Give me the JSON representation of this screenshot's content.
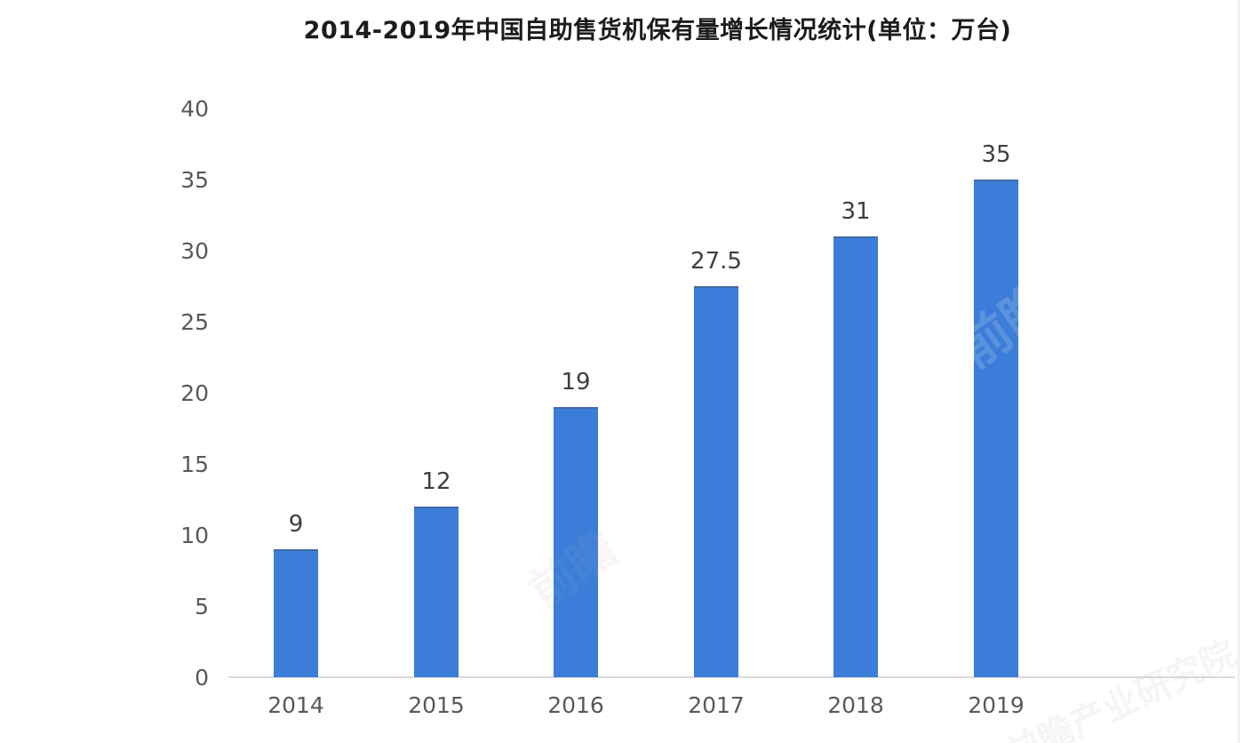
{
  "title": "2014-2019年中国自助售货机保有量增长情况统计(单位：万台)",
  "chart_data": {
    "type": "bar",
    "title": "2014-2019年中国自助售货机保有量增长情况统计(单位：万台)",
    "categories": [
      "2014",
      "2015",
      "2016",
      "2017",
      "2018",
      "2019"
    ],
    "values": [
      9,
      12,
      19,
      27.5,
      31,
      35
    ],
    "value_labels": [
      "9",
      "12",
      "19",
      "27.5",
      "31",
      "35"
    ],
    "xlabel": "",
    "ylabel": "",
    "ylim": [
      0,
      40
    ],
    "yticks": [
      0,
      5,
      10,
      15,
      20,
      25,
      30,
      35,
      40
    ],
    "grid": false,
    "legend": null,
    "bar_color": "#3b7dd8",
    "axis_line_color": "#d9d9d9",
    "tick_label_color": "#595959",
    "value_label_color": "#3f3f3f",
    "title_color": "#1c1c1c"
  },
  "watermarks": {
    "short_text": "前瞻",
    "full_text": "前瞻产业研究院"
  }
}
